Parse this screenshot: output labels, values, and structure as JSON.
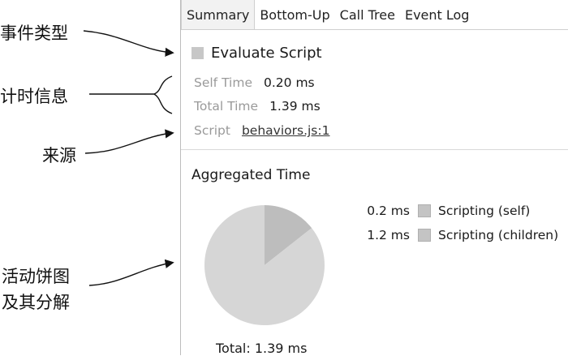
{
  "annotations": {
    "event_type": "事件类型",
    "timing_info": "计时信息",
    "source": "来源",
    "pie_chart_line1": "活动饼图",
    "pie_chart_line2": "及其分解"
  },
  "tabs": [
    "Summary",
    "Bottom-Up",
    "Call Tree",
    "Event Log"
  ],
  "active_tab": "Summary",
  "event": {
    "title": "Evaluate Script",
    "swatch_color": "#c7c7c7"
  },
  "timing": {
    "self_time_label": "Self Time",
    "self_time_value": "0.20 ms",
    "total_time_label": "Total Time",
    "total_time_value": "1.39 ms"
  },
  "script": {
    "label": "Script",
    "link_text": "behaviors.js:1"
  },
  "aggregated": {
    "title": "Aggregated Time",
    "total_text": "Total: 1.39 ms"
  },
  "chart_data": {
    "type": "pie",
    "title": "",
    "slices": [
      {
        "label": "Scripting (self)",
        "value_text": "0.2 ms",
        "value": 0.2,
        "color": "#bdbdbd"
      },
      {
        "label": "Scripting (children)",
        "value_text": "1.2 ms",
        "value": 1.19,
        "color": "#d6d6d6"
      }
    ]
  }
}
